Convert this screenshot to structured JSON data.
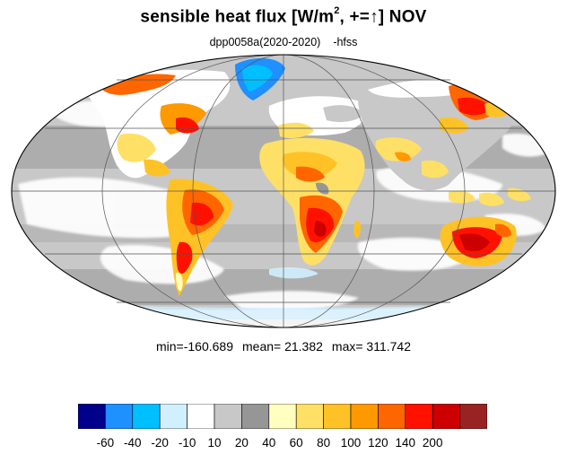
{
  "title": {
    "prefix": "sensible heat flux [W/m",
    "superscript": "2",
    "middle": ", +=",
    "arrow": "↑",
    "suffix": "]  NOV"
  },
  "subtitle": {
    "experiment": "dpp0058a(2020-2020)",
    "variable": "-hfss"
  },
  "stats": {
    "min": "min=-160.689",
    "mean": "mean=  21.382",
    "max": "max= 311.742"
  },
  "colorbar": {
    "colors": [
      "#00008b",
      "#1e90ff",
      "#00bfff",
      "#d0f0ff",
      "#ffffff",
      "#c8c8c8",
      "#969696",
      "#ffffc0",
      "#ffe066",
      "#ffc226",
      "#ff9900",
      "#ff6600",
      "#ff1100",
      "#cc0000",
      "#992222"
    ],
    "labels": [
      "-60",
      "-40",
      "-20",
      "-10",
      "10",
      "20",
      "40",
      "60",
      "80",
      "100",
      "120",
      "140",
      "200"
    ]
  },
  "map": {
    "projection": "Mollweide",
    "background_color": "#c8c8c8",
    "ocean_light_color": "#ffffff"
  }
}
